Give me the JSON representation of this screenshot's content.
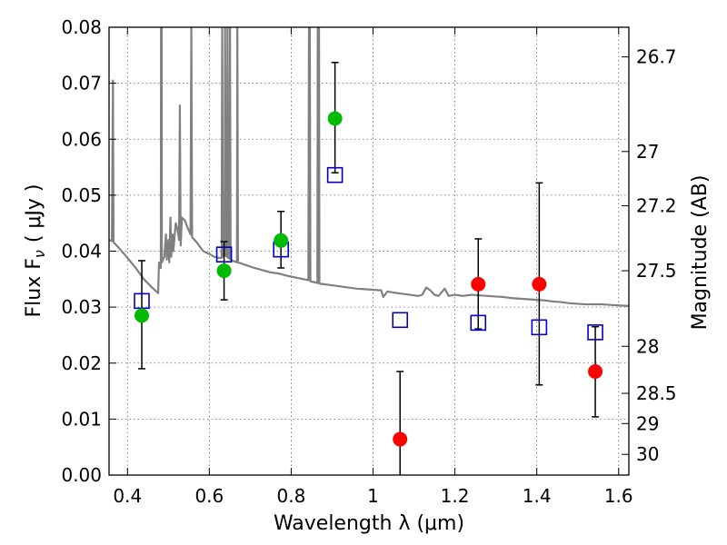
{
  "chart_data": {
    "type": "scatter",
    "title": "",
    "xlabel": "Wavelength  λ (μm)",
    "ylabel": "Flux  F",
    "ylabel_sub": "ν",
    "ylabel_unit": "( μJy )",
    "ylabel_right": "Magnitude (AB)",
    "xlim": [
      0.355,
      1.625
    ],
    "ylim": [
      0.0,
      0.08
    ],
    "grid": true,
    "x_ticks": [
      0.4,
      0.6,
      0.8,
      1.0,
      1.2,
      1.4,
      1.6
    ],
    "x_tick_labels": [
      "0.4",
      "0.6",
      "0.8",
      "1",
      "1.2",
      "1.4",
      "1.6"
    ],
    "y_ticks": [
      0.0,
      0.01,
      0.02,
      0.03,
      0.04,
      0.05,
      0.06,
      0.07,
      0.08
    ],
    "y_tick_labels": [
      "0.00",
      "0.01",
      "0.02",
      "0.03",
      "0.04",
      "0.05",
      "0.06",
      "0.07",
      "0.08"
    ],
    "right_ticks": [
      {
        "label": "26.7",
        "flux": 0.0747
      },
      {
        "label": "27",
        "flux": 0.0578
      },
      {
        "label": "27.2",
        "flux": 0.0481
      },
      {
        "label": "27.5",
        "flux": 0.0365
      },
      {
        "label": "28",
        "flux": 0.023
      },
      {
        "label": "28.5",
        "flux": 0.0146
      },
      {
        "label": "29",
        "flux": 0.0092
      },
      {
        "label": "30",
        "flux": 0.0037
      }
    ],
    "colors": {
      "model": "#808080",
      "detected": "#00bb00",
      "nondetected": "#ff0000",
      "model_photometry": "#0000cc",
      "errorbar": "#000000",
      "grid": "#666666"
    },
    "series": [
      {
        "points": [
          {
            "x": 0.435,
            "y": 0.0285,
            "err_low": 0.019,
            "err_high": 0.0383
          },
          {
            "x": 0.636,
            "y": 0.0365,
            "err_low": 0.0313,
            "err_high": 0.0417
          },
          {
            "x": 0.775,
            "y": 0.0419,
            "err_low": 0.037,
            "err_high": 0.0471
          },
          {
            "x": 0.907,
            "y": 0.0637,
            "err_low": 0.054,
            "err_high": 0.0737
          }
        ]
      },
      {
        "points": [
          {
            "x": 1.066,
            "y": 0.0064,
            "err_low": 0.0,
            "err_high": 0.0185
          },
          {
            "x": 1.257,
            "y": 0.0341,
            "err_low": 0.0261,
            "err_high": 0.0422
          },
          {
            "x": 1.406,
            "y": 0.0341,
            "err_low": 0.0161,
            "err_high": 0.0522
          },
          {
            "x": 1.543,
            "y": 0.0185,
            "err_low": 0.0104,
            "err_high": 0.0265
          }
        ]
      },
      {
        "points": [
          {
            "x": 0.435,
            "y": 0.0311
          },
          {
            "x": 0.636,
            "y": 0.0394
          },
          {
            "x": 0.775,
            "y": 0.0403
          },
          {
            "x": 0.907,
            "y": 0.0536
          },
          {
            "x": 1.066,
            "y": 0.0277
          },
          {
            "x": 1.257,
            "y": 0.0272
          },
          {
            "x": 1.406,
            "y": 0.0264
          },
          {
            "x": 1.543,
            "y": 0.0255
          }
        ]
      }
    ],
    "model_spectrum": [
      [
        0.355,
        0.042
      ],
      [
        0.362,
        0.0418
      ],
      [
        0.3645,
        0.0705
      ],
      [
        0.366,
        0.0416
      ],
      [
        0.38,
        0.0405
      ],
      [
        0.4,
        0.0388
      ],
      [
        0.42,
        0.037
      ],
      [
        0.44,
        0.035
      ],
      [
        0.46,
        0.0335
      ],
      [
        0.475,
        0.0325
      ],
      [
        0.477,
        0.038
      ],
      [
        0.479,
        0.0375
      ],
      [
        0.4815,
        0.037
      ],
      [
        0.482,
        0.08
      ],
      [
        0.4835,
        0.08
      ],
      [
        0.484,
        0.038
      ],
      [
        0.49,
        0.039
      ],
      [
        0.494,
        0.043
      ],
      [
        0.496,
        0.0385
      ],
      [
        0.5,
        0.042
      ],
      [
        0.502,
        0.038
      ],
      [
        0.505,
        0.046
      ],
      [
        0.507,
        0.039
      ],
      [
        0.51,
        0.043
      ],
      [
        0.512,
        0.04
      ],
      [
        0.518,
        0.045
      ],
      [
        0.522,
        0.044
      ],
      [
        0.526,
        0.042
      ],
      [
        0.528,
        0.066
      ],
      [
        0.53,
        0.041
      ],
      [
        0.533,
        0.046
      ],
      [
        0.54,
        0.0455
      ],
      [
        0.548,
        0.044
      ],
      [
        0.554,
        0.043
      ],
      [
        0.556,
        0.08
      ],
      [
        0.558,
        0.0425
      ],
      [
        0.57,
        0.0415
      ],
      [
        0.585,
        0.04
      ],
      [
        0.6,
        0.0395
      ],
      [
        0.612,
        0.039
      ],
      [
        0.625,
        0.0388
      ],
      [
        0.63,
        0.0388
      ],
      [
        0.6315,
        0.08
      ],
      [
        0.633,
        0.039
      ],
      [
        0.6375,
        0.0392
      ],
      [
        0.6385,
        0.08
      ],
      [
        0.64,
        0.0392
      ],
      [
        0.643,
        0.039
      ],
      [
        0.6445,
        0.08
      ],
      [
        0.646,
        0.0388
      ],
      [
        0.649,
        0.0387
      ],
      [
        0.6505,
        0.08
      ],
      [
        0.652,
        0.0385
      ],
      [
        0.66,
        0.0382
      ],
      [
        0.6675,
        0.038
      ],
      [
        0.6685,
        0.08
      ],
      [
        0.67,
        0.038
      ],
      [
        0.69,
        0.0375
      ],
      [
        0.71,
        0.037
      ],
      [
        0.73,
        0.0366
      ],
      [
        0.75,
        0.0362
      ],
      [
        0.77,
        0.036
      ],
      [
        0.79,
        0.0356
      ],
      [
        0.81,
        0.0353
      ],
      [
        0.83,
        0.035
      ],
      [
        0.842,
        0.0348
      ],
      [
        0.8435,
        0.08
      ],
      [
        0.8455,
        0.08
      ],
      [
        0.847,
        0.0346
      ],
      [
        0.86,
        0.0344
      ],
      [
        0.864,
        0.0343
      ],
      [
        0.865,
        0.08
      ],
      [
        0.868,
        0.08
      ],
      [
        0.869,
        0.0342
      ],
      [
        0.88,
        0.0341
      ],
      [
        0.9,
        0.0339
      ],
      [
        0.92,
        0.0337
      ],
      [
        0.94,
        0.0335
      ],
      [
        0.96,
        0.0333
      ],
      [
        0.98,
        0.0332
      ],
      [
        1.0,
        0.0331
      ],
      [
        1.02,
        0.033
      ],
      [
        1.025,
        0.0318
      ],
      [
        1.035,
        0.0328
      ],
      [
        1.05,
        0.0326
      ],
      [
        1.07,
        0.0324
      ],
      [
        1.09,
        0.0322
      ],
      [
        1.11,
        0.032
      ],
      [
        1.12,
        0.0322
      ],
      [
        1.13,
        0.0335
      ],
      [
        1.14,
        0.033
      ],
      [
        1.15,
        0.0322
      ],
      [
        1.16,
        0.032
      ],
      [
        1.175,
        0.0333
      ],
      [
        1.185,
        0.032
      ],
      [
        1.2,
        0.0322
      ],
      [
        1.22,
        0.032
      ],
      [
        1.24,
        0.0322
      ],
      [
        1.26,
        0.0321
      ],
      [
        1.28,
        0.032
      ],
      [
        1.3,
        0.0319
      ],
      [
        1.32,
        0.0318
      ],
      [
        1.34,
        0.0316
      ],
      [
        1.36,
        0.0315
      ],
      [
        1.38,
        0.0314
      ],
      [
        1.4,
        0.0313
      ],
      [
        1.42,
        0.0312
      ],
      [
        1.44,
        0.031
      ],
      [
        1.46,
        0.0309
      ],
      [
        1.48,
        0.0307
      ],
      [
        1.5,
        0.0306
      ],
      [
        1.52,
        0.0305
      ],
      [
        1.54,
        0.0305
      ],
      [
        1.56,
        0.0305
      ],
      [
        1.58,
        0.0304
      ],
      [
        1.6,
        0.0303
      ],
      [
        1.625,
        0.0302
      ]
    ]
  }
}
